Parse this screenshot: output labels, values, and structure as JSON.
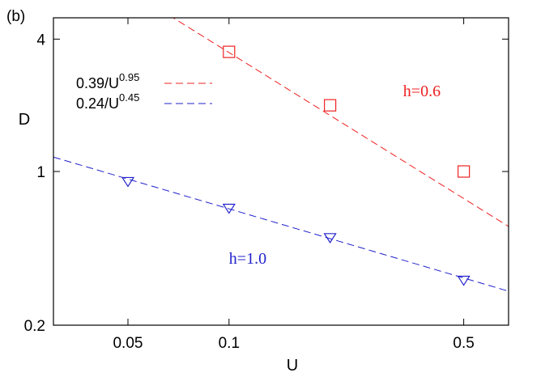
{
  "chart_data": {
    "type": "scatter",
    "panel_label": "(b)",
    "xlabel": "U",
    "ylabel": "D",
    "xscale": "log",
    "yscale": "log",
    "xlim": [
      0.03,
      0.68
    ],
    "ylim": [
      0.2,
      5.0
    ],
    "x_ticks": [
      {
        "value": 0.05,
        "label": "0.05"
      },
      {
        "value": 0.1,
        "label": "0.1"
      },
      {
        "value": 0.5,
        "label": "0.5"
      }
    ],
    "y_ticks": [
      {
        "value": 0.2,
        "label": "0.2"
      },
      {
        "value": 1,
        "label": "1"
      },
      {
        "value": 4,
        "label": "4"
      }
    ],
    "grid": false,
    "legend_position": "top-left",
    "series": [
      {
        "marker": "square",
        "color": "#ee2222",
        "points": [
          {
            "x": 0.1,
            "y": 3.5
          },
          {
            "x": 0.2,
            "y": 2.0
          },
          {
            "x": 0.5,
            "y": 1.0
          }
        ]
      },
      {
        "marker": "triangle-down",
        "color": "#2222cc",
        "points": [
          {
            "x": 0.05,
            "y": 0.9
          },
          {
            "x": 0.1,
            "y": 0.68
          },
          {
            "x": 0.2,
            "y": 0.5
          },
          {
            "x": 0.5,
            "y": 0.32
          }
        ]
      }
    ],
    "fits": [
      {
        "coef_label": "0.39/U",
        "exp_label": "0.95",
        "coefficient": 0.39,
        "exponent": 0.95,
        "color": "#ee2222",
        "style": "dashed"
      },
      {
        "coef_label": "0.24/U",
        "exp_label": "0.45",
        "coefficient": 0.24,
        "exponent": 0.45,
        "color": "#2222cc",
        "style": "dashed"
      }
    ],
    "annotations": [
      {
        "text": "h=0.6",
        "color": "#ee2222",
        "x": 0.33,
        "y": 2.2
      },
      {
        "text": "h=1.0",
        "color": "#2222cc",
        "x": 0.1,
        "y": 0.38
      }
    ]
  }
}
